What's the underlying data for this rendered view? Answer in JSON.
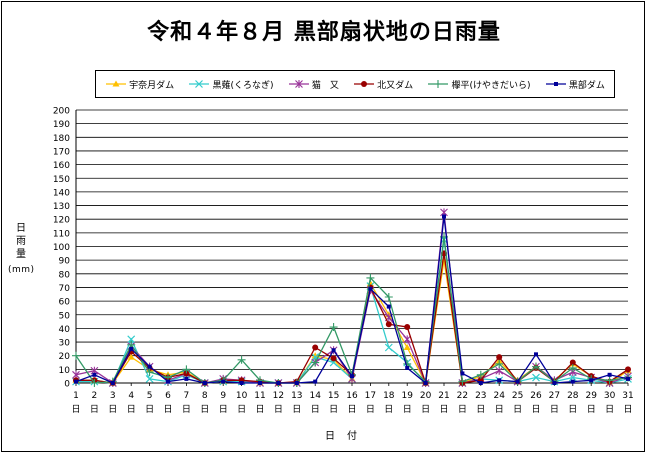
{
  "chart_data": {
    "type": "line",
    "title": "令和４年８月 黒部扇状地の日雨量",
    "ylabel": "日雨量",
    "yunit": "(mm)",
    "xlabel": "日付",
    "ylim": [
      0,
      200
    ],
    "yticks": [
      0,
      10,
      20,
      30,
      40,
      50,
      60,
      70,
      80,
      90,
      100,
      110,
      120,
      130,
      140,
      150,
      160,
      170,
      180,
      190,
      200
    ],
    "legend_position": "top",
    "categories": [
      "1日",
      "2日",
      "3日",
      "4日",
      "5日",
      "6日",
      "7日",
      "8日",
      "9日",
      "10日",
      "11日",
      "12日",
      "13日",
      "14日",
      "15日",
      "16日",
      "17日",
      "18日",
      "19日",
      "20日",
      "21日",
      "22日",
      "23日",
      "24日",
      "25日",
      "26日",
      "27日",
      "28日",
      "29日",
      "30日",
      "31日"
    ],
    "series": [
      {
        "name": "宇奈月ダム",
        "color": "#ffc000",
        "marker": "triangle",
        "values": [
          2,
          2,
          0,
          19,
          10,
          6,
          8,
          0,
          1,
          2,
          0,
          0,
          0,
          20,
          17,
          3,
          73,
          50,
          26,
          0,
          90,
          0,
          5,
          16,
          2,
          12,
          2,
          14,
          5,
          0,
          9
        ]
      },
      {
        "name": "黒薙(くろなぎ)",
        "color": "#33cccc",
        "marker": "x",
        "values": [
          1,
          1,
          0,
          32,
          3,
          1,
          6,
          0,
          1,
          1,
          0,
          0,
          0,
          19,
          15,
          3,
          71,
          26,
          15,
          0,
          105,
          0,
          3,
          2,
          1,
          4,
          1,
          4,
          2,
          0,
          3
        ]
      },
      {
        "name": "猫　又",
        "color": "#993399",
        "marker": "star",
        "values": [
          6,
          9,
          0,
          27,
          12,
          2,
          7,
          0,
          3,
          2,
          0,
          0,
          0,
          15,
          24,
          3,
          68,
          48,
          32,
          0,
          125,
          0,
          3,
          9,
          1,
          12,
          2,
          8,
          4,
          0,
          5
        ]
      },
      {
        "name": "北又ダム",
        "color": "#990000",
        "marker": "circle",
        "values": [
          2,
          2,
          0,
          23,
          11,
          4,
          7,
          0,
          2,
          2,
          1,
          0,
          1,
          26,
          18,
          6,
          70,
          43,
          41,
          0,
          95,
          0,
          2,
          19,
          1,
          11,
          1,
          15,
          5,
          1,
          10
        ]
      },
      {
        "name": "欅平(けやきだいら)",
        "color": "#339966",
        "marker": "plus",
        "values": [
          20,
          0,
          1,
          28,
          8,
          4,
          10,
          0,
          2,
          17,
          2,
          0,
          0,
          15,
          41,
          6,
          77,
          63,
          14,
          1,
          107,
          1,
          6,
          14,
          1,
          12,
          1,
          11,
          3,
          2,
          4
        ]
      },
      {
        "name": "黒部ダム",
        "color": "#000099",
        "marker": "dot",
        "values": [
          1,
          6,
          0,
          25,
          12,
          1,
          3,
          0,
          1,
          0,
          0,
          0,
          0,
          1,
          24,
          5,
          69,
          56,
          11,
          0,
          122,
          7,
          0,
          2,
          1,
          21,
          0,
          1,
          2,
          6,
          3
        ]
      }
    ]
  }
}
